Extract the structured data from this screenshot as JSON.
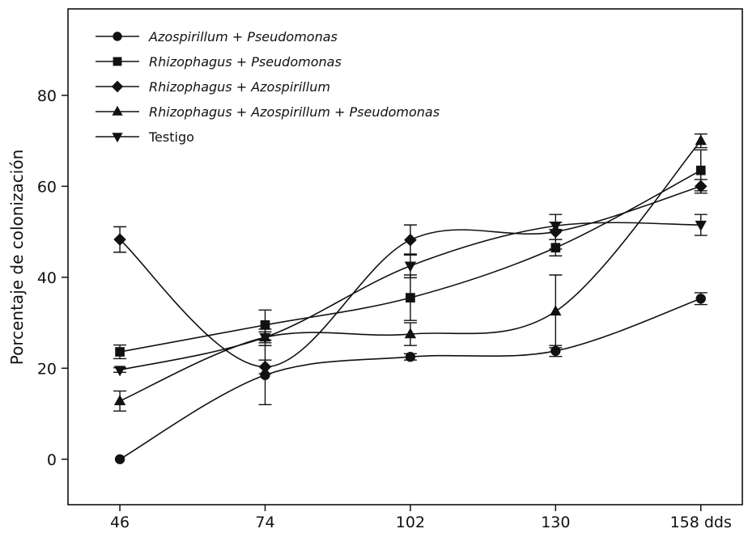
{
  "chart_data": {
    "type": "line",
    "title": "",
    "xlabel": "",
    "ylabel": "Porcentaje de colonización",
    "x": [
      46,
      74,
      102,
      130,
      158
    ],
    "x_tick_labels": [
      "46",
      "74",
      "102",
      "130",
      "158 dds"
    ],
    "y_ticks": [
      0,
      20,
      40,
      60,
      80
    ],
    "xlim": [
      36,
      166
    ],
    "ylim": [
      -10,
      99
    ],
    "grid": false,
    "legend_position": "top-left",
    "series": [
      {
        "name": "Azospirillum + Pseudomonas",
        "label_parts": [
          {
            "text": "Azospirillum",
            "italic": true
          },
          {
            "text": " + ",
            "italic": false
          },
          {
            "text": "Pseudomonas",
            "italic": true
          }
        ],
        "marker": "circle",
        "values": [
          0,
          18.5,
          22.5,
          23.8,
          35.3
        ],
        "errors": [
          0,
          6.5,
          0.7,
          1.2,
          1.3
        ]
      },
      {
        "name": "Rhizophagus + Pseudomonas",
        "label_parts": [
          {
            "text": "Rhizophagus",
            "italic": true
          },
          {
            "text": " + ",
            "italic": false
          },
          {
            "text": "Pseudomonas",
            "italic": true
          }
        ],
        "marker": "square",
        "values": [
          23.6,
          29.5,
          35.5,
          46.5,
          63.5
        ],
        "errors": [
          1.5,
          3.3,
          5.0,
          1.8,
          4.5
        ]
      },
      {
        "name": "Rhizophagus + Azospirillum",
        "label_parts": [
          {
            "text": "Rhizophagus",
            "italic": true
          },
          {
            "text": " + ",
            "italic": false
          },
          {
            "text": "Azospirillum",
            "italic": true
          }
        ],
        "marker": "diamond",
        "values": [
          48.3,
          20.3,
          48.2,
          50.0,
          60.0
        ],
        "errors": [
          2.8,
          1.5,
          3.3,
          3.8,
          1.5
        ]
      },
      {
        "name": "Rhizophagus + Azospirillum + Pseudomonas",
        "label_parts": [
          {
            "text": "Rhizophagus",
            "italic": true
          },
          {
            "text": " + ",
            "italic": false
          },
          {
            "text": "Azospirillum",
            "italic": true
          },
          {
            "text": " + ",
            "italic": false
          },
          {
            "text": "Pseudomonas",
            "italic": true
          }
        ],
        "marker": "triangle-up",
        "values": [
          12.8,
          26.8,
          27.5,
          32.5,
          70.0
        ],
        "errors": [
          2.2,
          1.8,
          2.5,
          8.0,
          1.5
        ]
      },
      {
        "name": "Testigo",
        "label_parts": [
          {
            "text": "Testigo",
            "italic": false
          }
        ],
        "marker": "triangle-down",
        "values": [
          19.6,
          26.8,
          42.5,
          51.3,
          51.5
        ],
        "errors": [
          0.5,
          1.2,
          2.6,
          0.8,
          2.3
        ]
      }
    ]
  }
}
